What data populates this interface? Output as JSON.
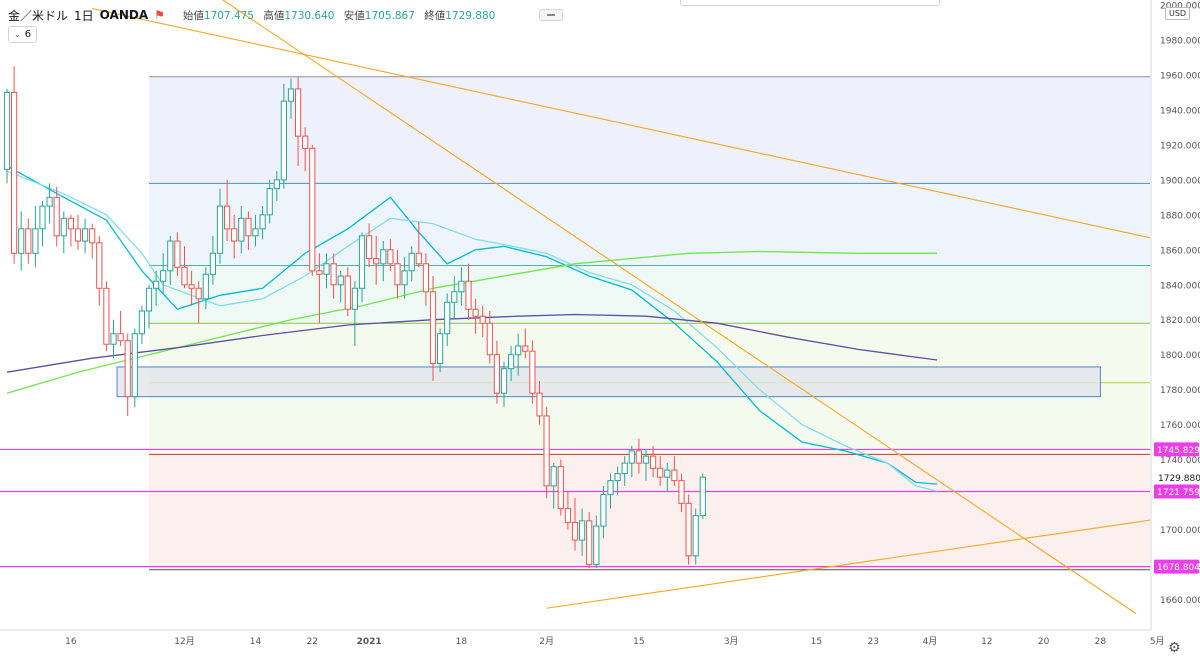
{
  "header": {
    "symbol": "金／米ドル",
    "interval": "1日",
    "source": "OANDA",
    "flag_icon": "flag-icon",
    "open_label": "始値",
    "open": "1707.475",
    "high_label": "高値",
    "high": "1730.640",
    "low_label": "安値",
    "low": "1705.867",
    "close_label": "終値",
    "close": "1729.880"
  },
  "indicator_toggle": {
    "count": "6",
    "icon": "chevron-down-icon"
  },
  "currency": "USD",
  "settings_icon": "gear-icon",
  "colors": {
    "up_candle": "#26a69a",
    "down_candle": "#ef5350",
    "trendline": "#f5a623",
    "price_level": "#ea3ee6",
    "ma_fast": "#00bcd4",
    "ma_mid": "#80deea",
    "ma_200": "#6ee84a",
    "ma_long": "#5e4fa2"
  },
  "chart_data": {
    "type": "candlestick",
    "title": "金／米ドル · 1日 · OANDA",
    "y_range": [
      1650,
      2000
    ],
    "y_ticks": [
      1660,
      1680,
      1700,
      1720,
      1740,
      1760,
      1780,
      1800,
      1820,
      1840,
      1860,
      1880,
      1900,
      1920,
      1940,
      1960,
      1980,
      2000
    ],
    "y_tick_labels": [
      "1660.000",
      "1680.000",
      "1700.000",
      "1720.000",
      "1740.000",
      "1760.000",
      "1780.000",
      "1800.000",
      "1820.000",
      "1840.000",
      "1860.000",
      "1880.000",
      "1900.000",
      "1920.000",
      "1940.000",
      "1960.000",
      "1980.000",
      "2000.000"
    ],
    "x_tick_labels": [
      {
        "label": "16",
        "t": 9
      },
      {
        "label": "12月",
        "t": 25
      },
      {
        "label": "14",
        "t": 35
      },
      {
        "label": "22",
        "t": 43
      },
      {
        "label": "2021",
        "t": 51
      },
      {
        "label": "18",
        "t": 64
      },
      {
        "label": "2月",
        "t": 76
      },
      {
        "label": "15",
        "t": 89
      },
      {
        "label": "3月",
        "t": 102
      },
      {
        "label": "15",
        "t": 114
      },
      {
        "label": "23",
        "t": 122
      },
      {
        "label": "4月",
        "t": 130
      },
      {
        "label": "12",
        "t": 138
      },
      {
        "label": "20",
        "t": 146
      },
      {
        "label": "28",
        "t": 154
      },
      {
        "label": "5月",
        "t": 162
      }
    ],
    "current_price": {
      "label": "1729.880",
      "value": 1729.88
    },
    "price_levels": [
      {
        "label": "1745.829",
        "value": 1745.829
      },
      {
        "label": "1721.759",
        "value": 1721.759
      },
      {
        "label": "1678.804",
        "value": 1678.804
      }
    ],
    "horizontal_lines": [
      {
        "value": 1959,
        "color": "#8a8f9c"
      },
      {
        "value": 1898,
        "color": "#4a90c8"
      },
      {
        "value": 1851,
        "color": "#4fb3a5"
      },
      {
        "value": 1818,
        "color": "#8bc34a"
      },
      {
        "value": 1784,
        "color": "#b5d334"
      },
      {
        "value": 1743,
        "color": "#c0392b"
      },
      {
        "value": 1677,
        "color": "#555555"
      }
    ],
    "zones": [
      {
        "from_t": 20,
        "to_t": 161,
        "low": 1898,
        "high": 1959,
        "color": "#eef0fb"
      },
      {
        "from_t": 20,
        "to_t": 161,
        "low": 1851,
        "high": 1898,
        "color": "#edf4fc"
      },
      {
        "from_t": 20,
        "to_t": 161,
        "low": 1818,
        "high": 1851,
        "color": "#eef8f5"
      },
      {
        "from_t": 20,
        "to_t": 161,
        "low": 1743,
        "high": 1818,
        "color": "#f5faee"
      },
      {
        "from_t": 20,
        "to_t": 161,
        "low": 1677,
        "high": 1743,
        "color": "#fcf0ee"
      }
    ],
    "rectangles": [
      {
        "from_t": 15.5,
        "to_t": 154,
        "low": 1776,
        "high": 1793,
        "fill": "#e1e5ea",
        "stroke": "#4f86c6"
      }
    ],
    "trendlines": [
      {
        "t1": 12,
        "p1": 1998,
        "t2": 162,
        "p2": 1866
      },
      {
        "t1": 30,
        "p1": 2004,
        "t2": 159,
        "p2": 1652
      },
      {
        "t1": 76,
        "p1": 1655,
        "t2": 162,
        "p2": 1706
      }
    ],
    "moving_averages": [
      {
        "name": "ma_fast",
        "color": "#00bcd4",
        "values": [
          [
            0,
            1908
          ],
          [
            8,
            1890
          ],
          [
            14,
            1877
          ],
          [
            19,
            1848
          ],
          [
            24,
            1826
          ],
          [
            30,
            1834
          ],
          [
            36,
            1838
          ],
          [
            42,
            1858
          ],
          [
            48,
            1872
          ],
          [
            54,
            1890
          ],
          [
            58,
            1870
          ],
          [
            62,
            1852
          ],
          [
            66,
            1860
          ],
          [
            70,
            1862
          ],
          [
            76,
            1856
          ],
          [
            82,
            1845
          ],
          [
            88,
            1837
          ],
          [
            94,
            1818
          ],
          [
            100,
            1796
          ],
          [
            106,
            1768
          ],
          [
            112,
            1750
          ],
          [
            118,
            1745
          ],
          [
            124,
            1738
          ],
          [
            128,
            1727
          ],
          [
            131,
            1726
          ]
        ]
      },
      {
        "name": "ma_mid",
        "color": "#80deea",
        "values": [
          [
            0,
            1905
          ],
          [
            8,
            1892
          ],
          [
            14,
            1880
          ],
          [
            19,
            1858
          ],
          [
            22,
            1840
          ],
          [
            30,
            1828
          ],
          [
            36,
            1832
          ],
          [
            42,
            1845
          ],
          [
            48,
            1862
          ],
          [
            54,
            1878
          ],
          [
            60,
            1875
          ],
          [
            66,
            1866
          ],
          [
            70,
            1863
          ],
          [
            76,
            1858
          ],
          [
            82,
            1847
          ],
          [
            88,
            1840
          ],
          [
            94,
            1825
          ],
          [
            100,
            1804
          ],
          [
            106,
            1780
          ],
          [
            112,
            1760
          ],
          [
            118,
            1748
          ],
          [
            124,
            1738
          ],
          [
            128,
            1725
          ],
          [
            131,
            1722
          ]
        ]
      },
      {
        "name": "ma_200",
        "color": "#6ee84a",
        "values": [
          [
            0,
            1778
          ],
          [
            10,
            1790
          ],
          [
            20,
            1800
          ],
          [
            30,
            1810
          ],
          [
            40,
            1820
          ],
          [
            50,
            1828
          ],
          [
            60,
            1838
          ],
          [
            70,
            1845
          ],
          [
            80,
            1852
          ],
          [
            88,
            1855
          ],
          [
            96,
            1858
          ],
          [
            106,
            1859
          ],
          [
            120,
            1858
          ],
          [
            131,
            1858
          ]
        ]
      },
      {
        "name": "ma_long",
        "color": "#5e4fa2",
        "values": [
          [
            0,
            1790
          ],
          [
            12,
            1798
          ],
          [
            24,
            1804
          ],
          [
            36,
            1811
          ],
          [
            48,
            1817
          ],
          [
            60,
            1820
          ],
          [
            72,
            1822
          ],
          [
            80,
            1823
          ],
          [
            90,
            1822
          ],
          [
            100,
            1818
          ],
          [
            110,
            1810
          ],
          [
            120,
            1803
          ],
          [
            131,
            1797
          ]
        ]
      }
    ],
    "candles": [
      [
        1906,
        1952,
        1898,
        1950
      ],
      [
        1950,
        1965,
        1852,
        1858
      ],
      [
        1858,
        1882,
        1848,
        1872
      ],
      [
        1872,
        1878,
        1852,
        1858
      ],
      [
        1858,
        1885,
        1850,
        1872
      ],
      [
        1872,
        1888,
        1862,
        1885
      ],
      [
        1885,
        1898,
        1875,
        1890
      ],
      [
        1890,
        1896,
        1862,
        1868
      ],
      [
        1868,
        1882,
        1858,
        1878
      ],
      [
        1878,
        1880,
        1862,
        1872
      ],
      [
        1872,
        1880,
        1860,
        1865
      ],
      [
        1865,
        1878,
        1858,
        1872
      ],
      [
        1872,
        1875,
        1855,
        1864
      ],
      [
        1864,
        1868,
        1828,
        1838
      ],
      [
        1838,
        1842,
        1802,
        1806
      ],
      [
        1806,
        1820,
        1798,
        1812
      ],
      [
        1812,
        1825,
        1805,
        1808
      ],
      [
        1808,
        1812,
        1765,
        1776
      ],
      [
        1776,
        1815,
        1770,
        1812
      ],
      [
        1812,
        1828,
        1806,
        1825
      ],
      [
        1825,
        1840,
        1815,
        1838
      ],
      [
        1838,
        1848,
        1828,
        1842
      ],
      [
        1842,
        1858,
        1835,
        1848
      ],
      [
        1848,
        1868,
        1840,
        1865
      ],
      [
        1865,
        1870,
        1845,
        1850
      ],
      [
        1850,
        1862,
        1838,
        1840
      ],
      [
        1840,
        1848,
        1828,
        1838
      ],
      [
        1838,
        1842,
        1818,
        1832
      ],
      [
        1832,
        1850,
        1826,
        1846
      ],
      [
        1846,
        1868,
        1840,
        1858
      ],
      [
        1858,
        1895,
        1852,
        1885
      ],
      [
        1885,
        1900,
        1865,
        1872
      ],
      [
        1872,
        1880,
        1855,
        1865
      ],
      [
        1865,
        1885,
        1858,
        1878
      ],
      [
        1878,
        1882,
        1860,
        1868
      ],
      [
        1868,
        1880,
        1862,
        1872
      ],
      [
        1872,
        1885,
        1866,
        1880
      ],
      [
        1880,
        1900,
        1875,
        1895
      ],
      [
        1895,
        1905,
        1888,
        1900
      ],
      [
        1900,
        1955,
        1895,
        1945
      ],
      [
        1945,
        1958,
        1935,
        1952
      ],
      [
        1952,
        1959,
        1908,
        1925
      ],
      [
        1925,
        1930,
        1905,
        1918
      ],
      [
        1918,
        1920,
        1845,
        1848
      ],
      [
        1848,
        1858,
        1818,
        1846
      ],
      [
        1846,
        1858,
        1838,
        1852
      ],
      [
        1852,
        1858,
        1832,
        1840
      ],
      [
        1840,
        1848,
        1830,
        1845
      ],
      [
        1845,
        1850,
        1822,
        1826
      ],
      [
        1826,
        1842,
        1805,
        1838
      ],
      [
        1838,
        1870,
        1830,
        1868
      ],
      [
        1868,
        1875,
        1850,
        1855
      ],
      [
        1855,
        1868,
        1840,
        1852
      ],
      [
        1852,
        1865,
        1842,
        1860
      ],
      [
        1860,
        1866,
        1848,
        1852
      ],
      [
        1852,
        1860,
        1832,
        1840
      ],
      [
        1840,
        1856,
        1832,
        1848
      ],
      [
        1848,
        1862,
        1842,
        1858
      ],
      [
        1858,
        1876,
        1850,
        1852
      ],
      [
        1852,
        1858,
        1828,
        1836
      ],
      [
        1836,
        1845,
        1785,
        1795
      ],
      [
        1795,
        1815,
        1790,
        1812
      ],
      [
        1812,
        1835,
        1805,
        1830
      ],
      [
        1830,
        1845,
        1820,
        1836
      ],
      [
        1836,
        1850,
        1828,
        1842
      ],
      [
        1842,
        1852,
        1820,
        1826
      ],
      [
        1826,
        1832,
        1812,
        1822
      ],
      [
        1822,
        1828,
        1810,
        1818
      ],
      [
        1818,
        1825,
        1795,
        1800
      ],
      [
        1800,
        1808,
        1772,
        1778
      ],
      [
        1778,
        1796,
        1770,
        1792
      ],
      [
        1792,
        1805,
        1785,
        1800
      ],
      [
        1800,
        1812,
        1788,
        1805
      ],
      [
        1805,
        1815,
        1798,
        1802
      ],
      [
        1802,
        1808,
        1772,
        1778
      ],
      [
        1778,
        1785,
        1760,
        1765
      ],
      [
        1765,
        1770,
        1718,
        1725
      ],
      [
        1725,
        1738,
        1712,
        1736
      ],
      [
        1736,
        1740,
        1708,
        1712
      ],
      [
        1712,
        1722,
        1700,
        1704
      ],
      [
        1704,
        1718,
        1688,
        1694
      ],
      [
        1694,
        1712,
        1685,
        1705
      ],
      [
        1705,
        1710,
        1678,
        1680
      ],
      [
        1680,
        1708,
        1678,
        1702
      ],
      [
        1702,
        1725,
        1695,
        1720
      ],
      [
        1720,
        1732,
        1712,
        1728
      ],
      [
        1728,
        1736,
        1720,
        1732
      ],
      [
        1732,
        1742,
        1725,
        1738
      ],
      [
        1738,
        1748,
        1730,
        1745
      ],
      [
        1745,
        1752,
        1732,
        1738
      ],
      [
        1738,
        1746,
        1728,
        1742
      ],
      [
        1742,
        1748,
        1730,
        1735
      ],
      [
        1735,
        1742,
        1725,
        1730
      ],
      [
        1730,
        1738,
        1722,
        1734
      ],
      [
        1734,
        1742,
        1725,
        1728
      ],
      [
        1728,
        1732,
        1710,
        1715
      ],
      [
        1715,
        1720,
        1680,
        1685
      ],
      [
        1685,
        1712,
        1680,
        1708
      ],
      [
        1708,
        1732,
        1706,
        1730
      ]
    ]
  }
}
